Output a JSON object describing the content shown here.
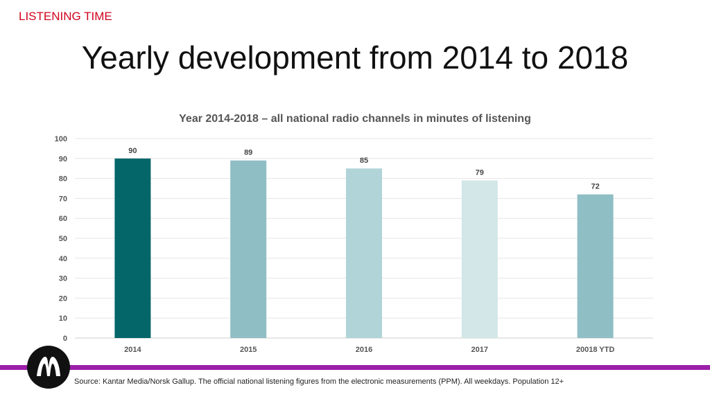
{
  "header": {
    "section_label": "LISTENING TIME",
    "title": "Yearly development from 2014 to 2018"
  },
  "chart_data": {
    "type": "bar",
    "title": "Year 2014-2018 – all national radio channels in minutes of listening",
    "categories": [
      "2014",
      "2015",
      "2016",
      "2017",
      "20018 YTD"
    ],
    "values": [
      90,
      89,
      85,
      79,
      72
    ],
    "colors": [
      "#05666a",
      "#8fbec4",
      "#b1d4d8",
      "#d3e7e8",
      "#8fbec4"
    ],
    "ylim": [
      0,
      100
    ],
    "yticks": [
      0,
      10,
      20,
      30,
      40,
      50,
      60,
      70,
      80,
      90,
      100
    ],
    "grid": true,
    "xlabel": "",
    "ylabel": ""
  },
  "footer": {
    "source": "Source: Kantar Media/Norsk Gallup. The official national listening figures from the electronic measurements (PPM). All weekdays. Population 12+",
    "logo_icon": "kantar-logo-icon",
    "accent_color": "#9b1fa8"
  }
}
